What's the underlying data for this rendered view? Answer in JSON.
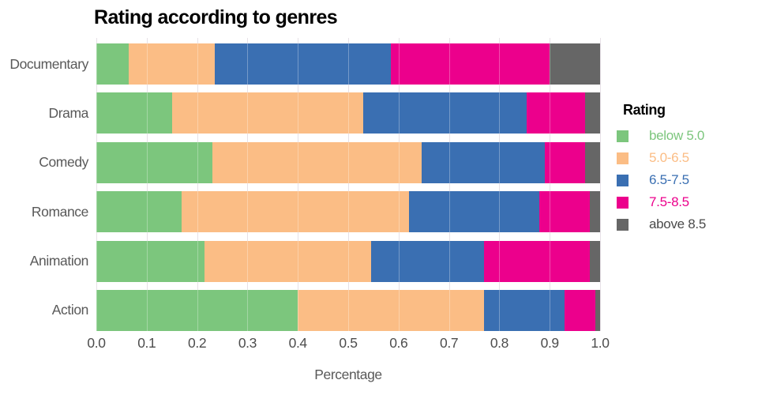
{
  "title": "Rating according to genres",
  "legend": {
    "title": "Rating",
    "items": [
      {
        "label": "below 5.0",
        "color": "#7CC67D",
        "text_color": "#7CC67D"
      },
      {
        "label": "5.0-6.5",
        "color": "#FBBD85",
        "text_color": "#FBBD85"
      },
      {
        "label": "6.5-7.5",
        "color": "#3A6FB2",
        "text_color": "#3A6FB2"
      },
      {
        "label": "7.5-8.5",
        "color": "#EC008C",
        "text_color": "#EC008C"
      },
      {
        "label": "above 8.5",
        "color": "#666666",
        "text_color": "#4A4A4A"
      }
    ]
  },
  "chart_data": {
    "type": "bar",
    "orientation": "horizontal",
    "stacked": true,
    "title": "Rating according to genres",
    "xlabel": "Percentage",
    "ylabel": "",
    "categories": [
      "Documentary",
      "Drama",
      "Comedy",
      "Romance",
      "Animation",
      "Action"
    ],
    "series": [
      {
        "name": "below 5.0",
        "color": "#7CC67D",
        "values": [
          0.065,
          0.15,
          0.23,
          0.17,
          0.215,
          0.4
        ]
      },
      {
        "name": "5.0-6.5",
        "color": "#FBBD85",
        "values": [
          0.17,
          0.38,
          0.415,
          0.45,
          0.33,
          0.37
        ]
      },
      {
        "name": "6.5-7.5",
        "color": "#3A6FB2",
        "values": [
          0.35,
          0.325,
          0.245,
          0.26,
          0.225,
          0.16
        ]
      },
      {
        "name": "7.5-8.5",
        "color": "#EC008C",
        "values": [
          0.315,
          0.115,
          0.08,
          0.1,
          0.21,
          0.06
        ]
      },
      {
        "name": "above 8.5",
        "color": "#666666",
        "values": [
          0.1,
          0.03,
          0.03,
          0.02,
          0.02,
          0.01
        ]
      }
    ],
    "x_ticks": [
      "0.0",
      "0.1",
      "0.2",
      "0.3",
      "0.4",
      "0.5",
      "0.6",
      "0.7",
      "0.8",
      "0.9",
      "1.0"
    ],
    "xlim": [
      0.0,
      1.0
    ],
    "grid": "vertical",
    "gridline_color": "#DDD5DD",
    "legend_position": "right",
    "legend_title": "Rating"
  }
}
